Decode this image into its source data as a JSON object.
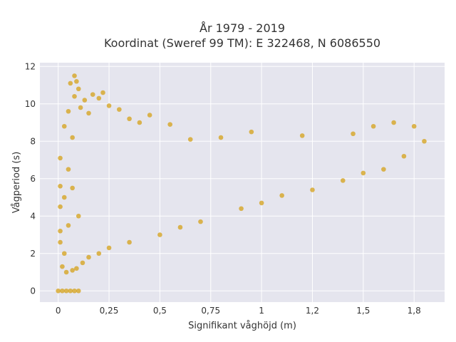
{
  "chart_data": {
    "type": "scatter",
    "title_lines": [
      "År 1979 - 2019",
      "Koordinat (Sweref 99 TM): E 322468, N 6086550"
    ],
    "xlabel": "Signifikant våghöjd (m)",
    "ylabel": "Vågperiod (s)",
    "xlim": [
      -0.09,
      1.9
    ],
    "ylim": [
      -0.6,
      12.2
    ],
    "x_ticks": [
      0,
      0.25,
      0.5,
      0.75,
      1,
      1.25,
      1.5,
      1.75
    ],
    "x_tick_labels": [
      "0",
      "0,25",
      "0,5",
      "0,75",
      "1",
      "1,2",
      "1,5",
      "1,8"
    ],
    "y_ticks": [
      0,
      2,
      4,
      6,
      8,
      10,
      12
    ],
    "y_tick_labels": [
      "0",
      "2",
      "4",
      "6",
      "8",
      "10",
      "12"
    ],
    "grid": true,
    "background_color": "#e5e5ee",
    "marker_color": "#d4a017",
    "series": [
      {
        "points": [
          [
            0.0,
            0
          ],
          [
            0.02,
            0
          ],
          [
            0.04,
            0
          ],
          [
            0.06,
            0
          ],
          [
            0.08,
            0
          ],
          [
            0.1,
            0
          ],
          [
            0.01,
            2.6
          ],
          [
            0.01,
            3.2
          ],
          [
            0.01,
            4.5
          ],
          [
            0.01,
            5.6
          ],
          [
            0.01,
            7.1
          ],
          [
            0.02,
            1.3
          ],
          [
            0.03,
            2.0
          ],
          [
            0.03,
            5.0
          ],
          [
            0.03,
            8.8
          ],
          [
            0.04,
            1.0
          ],
          [
            0.05,
            3.5
          ],
          [
            0.05,
            6.5
          ],
          [
            0.05,
            9.6
          ],
          [
            0.06,
            11.1
          ],
          [
            0.07,
            1.1
          ],
          [
            0.07,
            5.5
          ],
          [
            0.07,
            8.2
          ],
          [
            0.08,
            10.4
          ],
          [
            0.08,
            11.5
          ],
          [
            0.09,
            11.2
          ],
          [
            0.09,
            1.2
          ],
          [
            0.1,
            4.0
          ],
          [
            0.1,
            10.8
          ],
          [
            0.11,
            9.8
          ],
          [
            0.12,
            1.5
          ],
          [
            0.13,
            10.2
          ],
          [
            0.15,
            1.8
          ],
          [
            0.15,
            9.5
          ],
          [
            0.17,
            10.5
          ],
          [
            0.2,
            2.0
          ],
          [
            0.2,
            10.3
          ],
          [
            0.22,
            10.6
          ],
          [
            0.25,
            2.3
          ],
          [
            0.25,
            9.9
          ],
          [
            0.3,
            9.7
          ],
          [
            0.35,
            2.6
          ],
          [
            0.35,
            9.2
          ],
          [
            0.4,
            9.0
          ],
          [
            0.45,
            9.4
          ],
          [
            0.5,
            3.0
          ],
          [
            0.55,
            8.9
          ],
          [
            0.6,
            3.4
          ],
          [
            0.65,
            8.1
          ],
          [
            0.7,
            3.7
          ],
          [
            0.8,
            8.2
          ],
          [
            0.9,
            4.4
          ],
          [
            0.95,
            8.5
          ],
          [
            1.0,
            4.7
          ],
          [
            1.1,
            5.1
          ],
          [
            1.2,
            8.3
          ],
          [
            1.25,
            5.4
          ],
          [
            1.4,
            5.9
          ],
          [
            1.45,
            8.4
          ],
          [
            1.5,
            6.3
          ],
          [
            1.55,
            8.8
          ],
          [
            1.6,
            6.5
          ],
          [
            1.65,
            9.0
          ],
          [
            1.7,
            7.2
          ],
          [
            1.75,
            8.8
          ],
          [
            1.8,
            8.0
          ]
        ]
      }
    ]
  }
}
